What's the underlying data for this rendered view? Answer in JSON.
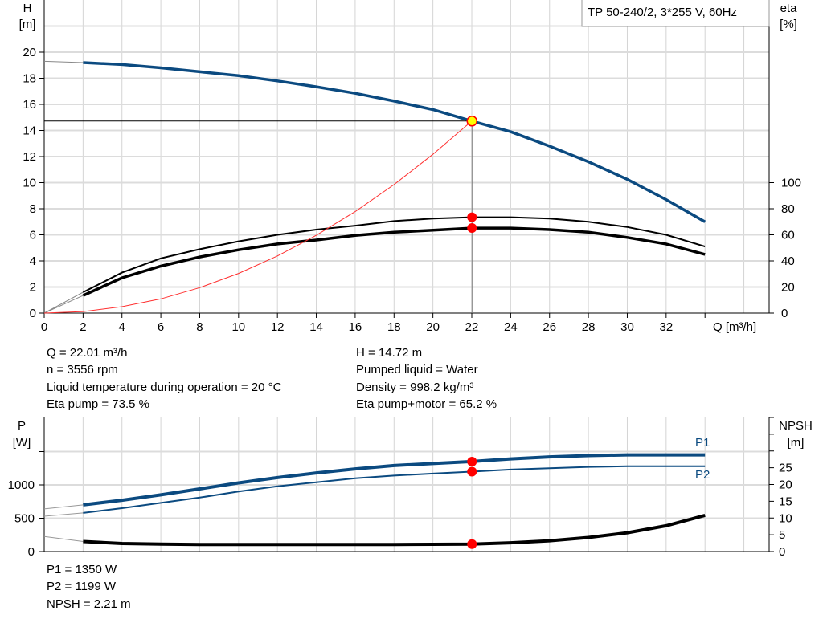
{
  "chart_data": [
    {
      "type": "line",
      "title": "TP 50-240/2, 3*255 V, 60Hz",
      "xlabel": "Q [m³/h]",
      "ylabel": "H\n[m]",
      "ylabel_h": "H",
      "ylabel_h_unit": "[m]",
      "ylabel_right": "eta",
      "ylabel_right_unit": "[%]",
      "xlim": [
        0,
        37.3
      ],
      "ylim": [
        0,
        24
      ],
      "ylim_right": [
        0,
        240
      ],
      "xticks": [
        0,
        2,
        4,
        6,
        8,
        10,
        12,
        14,
        16,
        18,
        20,
        22,
        24,
        26,
        28,
        30,
        32
      ],
      "yticks": [
        0,
        2,
        4,
        6,
        8,
        10,
        12,
        14,
        16,
        18,
        20
      ],
      "yticks_right": [
        0,
        20,
        40,
        60,
        80,
        100
      ],
      "grid": true,
      "x": [
        0,
        2,
        4,
        6,
        8,
        10,
        12,
        14,
        16,
        18,
        20,
        22,
        24,
        26,
        28,
        30,
        32,
        34
      ],
      "series": [
        {
          "key": "H",
          "color": "#0b4a80",
          "values": [
            19.3,
            19.2,
            19.05,
            18.8,
            18.5,
            18.2,
            17.8,
            17.35,
            16.85,
            16.25,
            15.6,
            14.72,
            13.9,
            12.8,
            11.6,
            10.25,
            8.7,
            7.0
          ]
        },
        {
          "key": "eta_pump",
          "color": "#000000",
          "axis": "right",
          "values": [
            0,
            16,
            31,
            42,
            49,
            55,
            60,
            64,
            67,
            70.5,
            72.5,
            73.5,
            73.5,
            72.5,
            70,
            66,
            60,
            51
          ]
        },
        {
          "key": "eta_pump_motor",
          "color": "#000000",
          "axis": "right",
          "values": [
            0,
            13.5,
            27,
            36,
            43,
            48.5,
            53,
            56,
            59.5,
            62,
            63.5,
            65.2,
            65.2,
            64,
            62,
            58,
            53,
            45
          ]
        },
        {
          "key": "system_curve",
          "color": "#ff3030",
          "x": [
            0,
            2,
            4,
            6,
            8,
            10,
            12,
            14,
            16,
            18,
            20,
            22
          ],
          "values": [
            0,
            0.12,
            0.49,
            1.09,
            1.95,
            3.04,
            4.38,
            5.96,
            7.78,
            9.85,
            12.17,
            14.72
          ]
        }
      ],
      "operating_point": {
        "Q": 22.01,
        "H": 14.72,
        "eta_pump": 73.5,
        "eta_pump_motor": 65.2
      }
    },
    {
      "type": "line",
      "ylabel_p": "P",
      "ylabel_p_unit": "[W]",
      "ylabel_right": "NPSH",
      "ylabel_right_unit": "[m]",
      "xlim": [
        0,
        37.3
      ],
      "ylim": [
        0,
        2012
      ],
      "ylim_right": [
        0,
        40
      ],
      "yticks": [
        0,
        500,
        1000
      ],
      "yticks_right": [
        0,
        5,
        10,
        15,
        20,
        25
      ],
      "grid": true,
      "x": [
        0,
        2,
        4,
        6,
        8,
        10,
        12,
        14,
        16,
        18,
        20,
        22,
        24,
        26,
        28,
        30,
        32,
        34
      ],
      "series": [
        {
          "name": "P1",
          "color": "#0b4a80",
          "values": [
            640,
            700,
            770,
            850,
            940,
            1030,
            1110,
            1180,
            1240,
            1290,
            1320,
            1350,
            1390,
            1420,
            1440,
            1450,
            1450,
            1450
          ]
        },
        {
          "name": "P2",
          "color": "#0b4a80",
          "values": [
            530,
            580,
            650,
            730,
            810,
            900,
            980,
            1040,
            1100,
            1140,
            1170,
            1199,
            1230,
            1250,
            1270,
            1280,
            1280,
            1280
          ]
        },
        {
          "key": "NPSH",
          "color": "#000000",
          "axis": "right",
          "values": [
            4.5,
            3.0,
            2.4,
            2.2,
            2.1,
            2.1,
            2.1,
            2.1,
            2.1,
            2.1,
            2.15,
            2.21,
            2.6,
            3.2,
            4.2,
            5.6,
            7.7,
            10.8
          ]
        }
      ],
      "operating_point": {
        "Q": 22.01,
        "P1": 1350,
        "P2": 1199,
        "NPSH": 2.21
      }
    }
  ],
  "info": {
    "q": "Q = 22.01 m³/h",
    "n": "n = 3556 rpm",
    "temp": "Liquid temperature during operation = 20 °C",
    "eta_pump": "Eta pump = 73.5 %",
    "h": "H = 14.72 m",
    "liquid": "Pumped liquid = Water",
    "density": "Density = 998.2 kg/m³",
    "eta_total": "Eta pump+motor = 65.2 %",
    "p1": "P1 = 1350 W",
    "p2": "P2 = 1199 W",
    "npsh": "NPSH = 2.21 m"
  }
}
